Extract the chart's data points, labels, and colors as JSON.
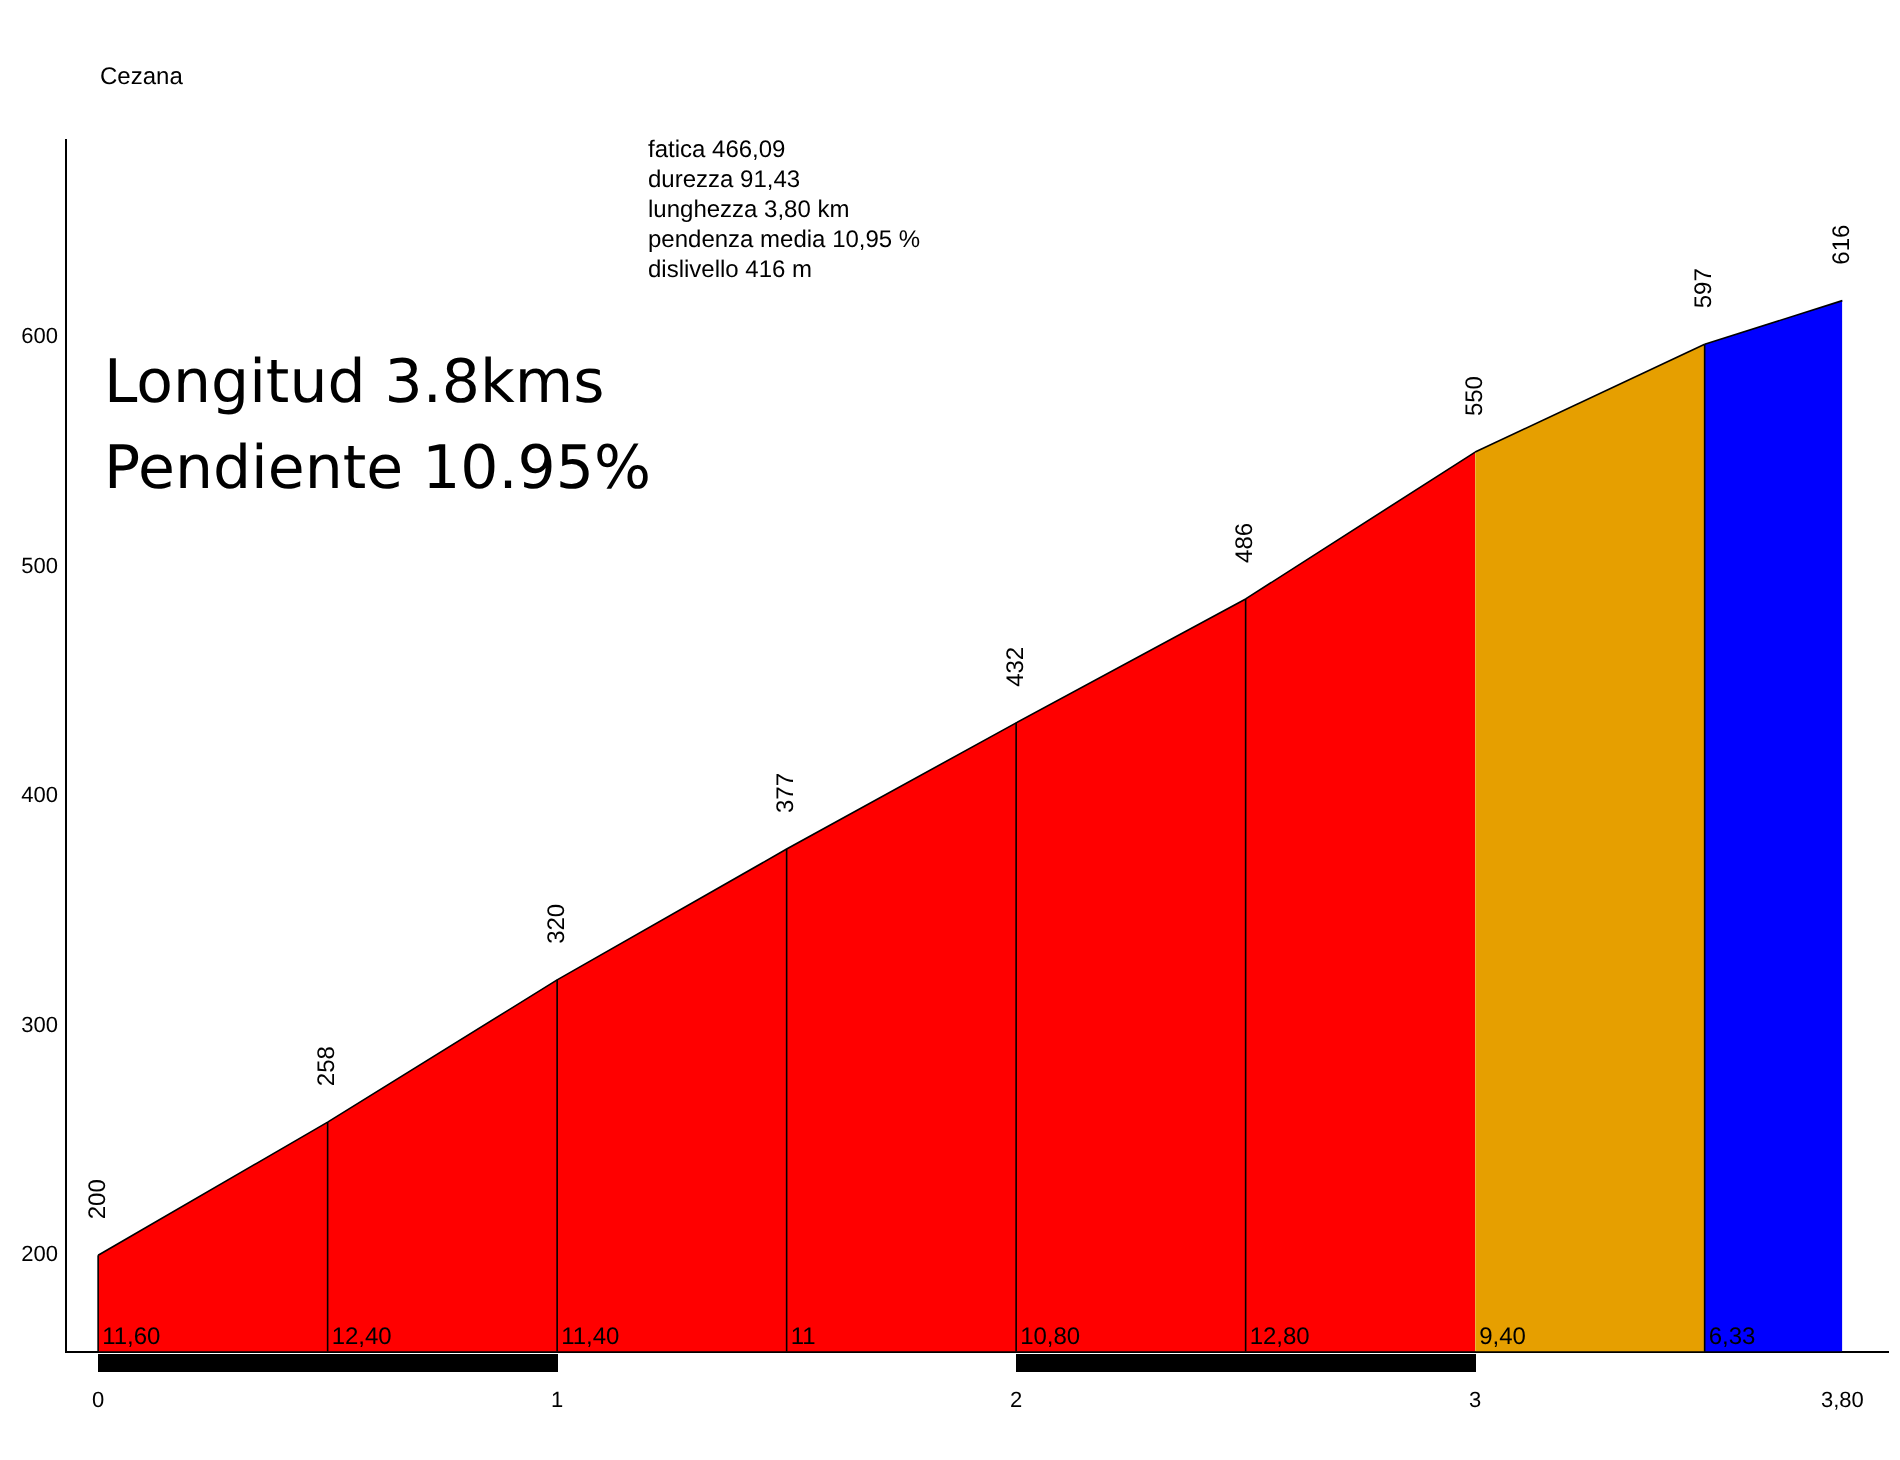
{
  "chart_data": {
    "type": "area",
    "title": "Cezana",
    "series": [
      {
        "color": "#ff0000",
        "x": [
          0,
          0.5,
          1,
          1.5,
          2,
          2.5,
          3
        ],
        "values": [
          200,
          258,
          320,
          377,
          432,
          486,
          550
        ],
        "value_labels": [
          "200",
          "258",
          "320",
          "377",
          "432",
          "486",
          "550"
        ]
      },
      {
        "color": "#e69f00",
        "x": [
          3,
          3.5
        ],
        "values": [
          550,
          597
        ],
        "value_labels": [
          null,
          "597"
        ]
      },
      {
        "color": "#0000ff",
        "x": [
          3.5,
          3.8
        ],
        "values": [
          597,
          616
        ],
        "value_labels": [
          null,
          "616"
        ]
      }
    ],
    "xlim": [
      -0.07,
      3.9
    ],
    "xticks": [
      0,
      1,
      2,
      3,
      {
        "value": 3.8,
        "label": "3,80"
      }
    ],
    "ylim": [
      158,
      686
    ],
    "yticks": [
      200,
      300,
      400,
      500,
      600
    ],
    "annotations": [
      "fatica 466,09",
      "durezza 91,43",
      "lunghezza 3,80 km",
      "pendenza media 10,95 %",
      "dislivello 416 m",
      "Longitud 3.8kms",
      "Pendiente 10.95%",
      {
        "text": "11,60",
        "x": 0,
        "y": 200
      },
      {
        "text": "12,40",
        "x": 0.5,
        "y": 258
      },
      {
        "text": "11,40",
        "x": 1,
        "y": 320
      },
      {
        "text": "11",
        "x": 1.5,
        "y": 377
      },
      {
        "text": "10,80",
        "x": 2,
        "y": 432
      },
      {
        "text": "12,80",
        "x": 2.5,
        "y": 486
      },
      "9,40",
      {
        "text": "6,33",
        "x": 3.5,
        "y": 597
      }
    ]
  }
}
